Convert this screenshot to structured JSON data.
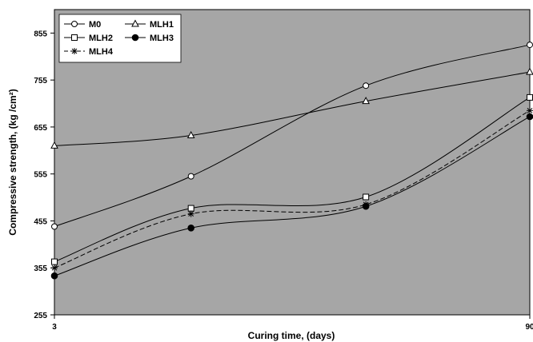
{
  "chart_data": {
    "type": "line",
    "title": "",
    "xlabel": "Curing time, (days)",
    "ylabel": "Compressive strength, (kg /cm²)",
    "xlim": [
      3,
      90
    ],
    "ylim": [
      255,
      905
    ],
    "x_ticks": [
      3,
      90
    ],
    "y_ticks": [
      255,
      355,
      455,
      555,
      655,
      755,
      855
    ],
    "grid": false,
    "legend": "top-left",
    "plot_background": "#a6a6a6",
    "series": [
      {
        "name": "M0",
        "marker": "open-circle",
        "line": "solid",
        "x": [
          3,
          28,
          60,
          90
        ],
        "y": [
          443,
          550,
          743,
          830
        ]
      },
      {
        "name": "MLH1",
        "marker": "open-triangle",
        "line": "solid",
        "x": [
          3,
          28,
          60,
          90
        ],
        "y": [
          615,
          637,
          710,
          772
        ]
      },
      {
        "name": "MLH2",
        "marker": "open-square",
        "line": "solid",
        "x": [
          3,
          28,
          60,
          90
        ],
        "y": [
          368,
          482,
          506,
          718
        ]
      },
      {
        "name": "MLH3",
        "marker": "filled-circle",
        "line": "solid",
        "x": [
          3,
          28,
          60,
          90
        ],
        "y": [
          338,
          440,
          486,
          677
        ]
      },
      {
        "name": "MLH4",
        "marker": "asterisk",
        "line": "dashed",
        "x": [
          3,
          28,
          60,
          90
        ],
        "y": [
          355,
          470,
          490,
          690
        ]
      }
    ]
  }
}
